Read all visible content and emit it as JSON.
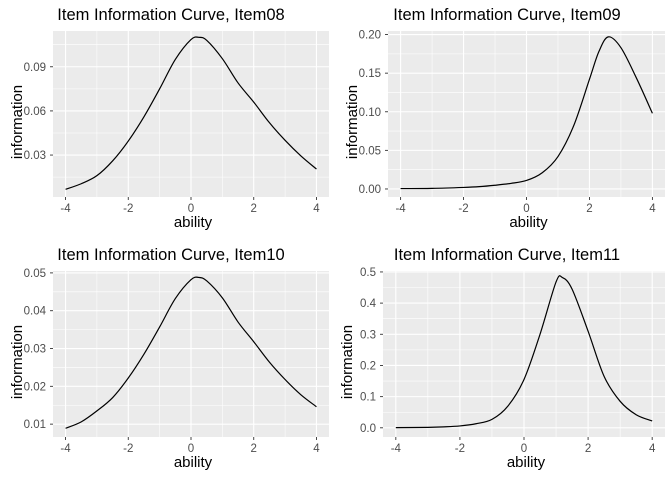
{
  "style": {
    "background": "#FFFFFF",
    "panel_background": "#EBEBEB",
    "grid_major_color": "#FFFFFF",
    "grid_minor_color": "#FFFFFF",
    "curve_color": "#000000",
    "tick_mark_color": "#333333",
    "tick_label_color": "#4D4D4D",
    "title_color": "#000000",
    "axis_title_color": "#000000"
  },
  "chart_data": [
    {
      "type": "line",
      "title": "Item Information Curve, Item08",
      "xlabel": "ability",
      "ylabel": "information",
      "legend": "none",
      "grid": true,
      "xlim": [
        -4.4,
        4.4
      ],
      "ylim": [
        0.0015,
        0.1143
      ],
      "xticks": [
        -4,
        -2,
        0,
        2,
        4
      ],
      "xtick_labels": [
        "-4",
        "-2",
        "0",
        "2",
        "4"
      ],
      "minor_xticks": [
        -3,
        -1,
        1,
        3
      ],
      "yticks": [
        0.03,
        0.06,
        0.09
      ],
      "ytick_labels": [
        "0.03",
        "0.06",
        "0.09"
      ],
      "minor_yticks": [
        0.015,
        0.045,
        0.075,
        0.105
      ],
      "series": [
        {
          "name": "item information",
          "x": [
            -4,
            -3.5,
            -3,
            -2.5,
            -2,
            -1.5,
            -1,
            -0.5,
            0,
            0.25,
            0.5,
            1,
            1.5,
            2,
            2.5,
            3,
            3.5,
            4
          ],
          "y": [
            0.0067,
            0.0105,
            0.016,
            0.026,
            0.0395,
            0.056,
            0.075,
            0.095,
            0.1085,
            0.11,
            0.108,
            0.0955,
            0.079,
            0.066,
            0.052,
            0.04,
            0.0295,
            0.0205
          ]
        }
      ]
    },
    {
      "type": "line",
      "title": "Item Information Curve, Item09",
      "xlabel": "ability",
      "ylabel": "information",
      "legend": "none",
      "grid": true,
      "xlim": [
        -4.4,
        4.4
      ],
      "ylim": [
        -0.0104,
        0.2046
      ],
      "xticks": [
        -4,
        -2,
        0,
        2,
        4
      ],
      "xtick_labels": [
        "-4",
        "-2",
        "0",
        "2",
        "4"
      ],
      "minor_xticks": [
        -3,
        -1,
        1,
        3
      ],
      "yticks": [
        0.0,
        0.05,
        0.1,
        0.15,
        0.2
      ],
      "ytick_labels": [
        "0.00",
        "0.05",
        "0.10",
        "0.15",
        "0.20"
      ],
      "minor_yticks": [
        0.025,
        0.075,
        0.125,
        0.175
      ],
      "series": [
        {
          "name": "item information",
          "x": [
            -4,
            -3,
            -2,
            -1.5,
            -1,
            -0.5,
            0,
            0.5,
            1,
            1.5,
            2,
            2.3,
            2.6,
            3,
            3.5,
            4
          ],
          "y": [
            0.0005,
            0.0008,
            0.002,
            0.003,
            0.0048,
            0.0072,
            0.011,
            0.021,
            0.042,
            0.082,
            0.142,
            0.178,
            0.197,
            0.183,
            0.143,
            0.098
          ]
        }
      ]
    },
    {
      "type": "line",
      "title": "Item Information Curve, Item10",
      "xlabel": "ability",
      "ylabel": "information",
      "legend": "none",
      "grid": true,
      "xlim": [
        -4.4,
        4.4
      ],
      "ylim": [
        0.0066,
        0.0505
      ],
      "xticks": [
        -4,
        -2,
        0,
        2,
        4
      ],
      "xtick_labels": [
        "-4",
        "-2",
        "0",
        "2",
        "4"
      ],
      "minor_xticks": [
        -3,
        -1,
        1,
        3
      ],
      "yticks": [
        0.01,
        0.02,
        0.03,
        0.04,
        0.05
      ],
      "ytick_labels": [
        "0.01",
        "0.02",
        "0.03",
        "0.04",
        "0.05"
      ],
      "minor_yticks": [
        0.015,
        0.025,
        0.035,
        0.045
      ],
      "series": [
        {
          "name": "item information",
          "x": [
            -4,
            -3.5,
            -3,
            -2.5,
            -2,
            -1.5,
            -1,
            -0.5,
            0,
            0.25,
            0.5,
            1,
            1.5,
            2,
            2.5,
            3,
            3.5,
            4
          ],
          "y": [
            0.0089,
            0.0106,
            0.0135,
            0.017,
            0.0222,
            0.0285,
            0.0357,
            0.0432,
            0.0482,
            0.0488,
            0.0479,
            0.0434,
            0.037,
            0.0318,
            0.0264,
            0.0218,
            0.0178,
            0.0146
          ]
        }
      ]
    },
    {
      "type": "line",
      "title": "Item Information Curve, Item11",
      "xlabel": "ability",
      "ylabel": "information",
      "legend": "none",
      "grid": true,
      "xlim": [
        -4.4,
        4.4
      ],
      "ylim": [
        -0.0295,
        0.503
      ],
      "xticks": [
        -4,
        -2,
        0,
        2,
        4
      ],
      "xtick_labels": [
        "-4",
        "-2",
        "0",
        "2",
        "4"
      ],
      "minor_xticks": [
        -3,
        -1,
        1,
        3
      ],
      "yticks": [
        0.0,
        0.1,
        0.2,
        0.3,
        0.4,
        0.5
      ],
      "ytick_labels": [
        "0.0",
        "0.1",
        "0.2",
        "0.3",
        "0.4",
        "0.5"
      ],
      "minor_yticks": [
        0.05,
        0.15,
        0.25,
        0.35,
        0.45
      ],
      "series": [
        {
          "name": "item information",
          "x": [
            -4,
            -3,
            -2.5,
            -2,
            -1.5,
            -1,
            -0.5,
            0,
            0.5,
            1,
            1.2,
            1.5,
            2,
            2.5,
            3,
            3.5,
            4
          ],
          "y": [
            0.0005,
            0.0015,
            0.003,
            0.006,
            0.013,
            0.027,
            0.07,
            0.155,
            0.3,
            0.468,
            0.482,
            0.445,
            0.31,
            0.165,
            0.085,
            0.042,
            0.022
          ]
        }
      ]
    }
  ]
}
